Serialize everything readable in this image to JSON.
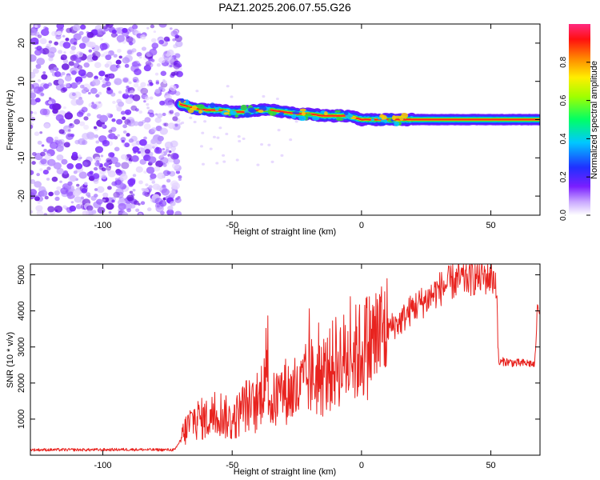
{
  "title": "PAZ1.2025.206.07.55.G26",
  "colors": {
    "snr_line": "#e8231f",
    "band": "#33cc33",
    "band_core": "#ff2222",
    "speckle": "#7b2cff"
  },
  "chart_data": [
    {
      "type": "heatmap",
      "xlabel": "Height of straight line (km)",
      "ylabel": "Frequency (Hz)",
      "xlim": [
        -128,
        69
      ],
      "ylim": [
        -25,
        25
      ],
      "xticks": [
        -100,
        -50,
        0,
        50
      ],
      "xtick_labels": [
        "-100",
        "-50",
        "0",
        "50"
      ],
      "yticks": [
        -20,
        -10,
        0,
        10,
        20
      ],
      "ytick_labels": [
        "-20",
        "-10",
        "0",
        "10",
        "20"
      ],
      "grid": false,
      "colorbar": {
        "label": "Normalized spectral amplitude",
        "range": [
          0,
          1
        ],
        "ticks": [
          0.0,
          0.2,
          0.4,
          0.6,
          0.8
        ],
        "tick_labels": [
          "0.0",
          "0.2",
          "0.4",
          "0.6",
          "0.8"
        ],
        "colormap": "rainbow"
      },
      "noise_region_x": [
        -128,
        -70
      ],
      "ridge": {
        "x": [
          -70,
          -65,
          -60,
          -55,
          -50,
          -45,
          -40,
          -35,
          -30,
          -25,
          -20,
          -15,
          -10,
          -5,
          0,
          5,
          10,
          15,
          20,
          30,
          40,
          50,
          60,
          69
        ],
        "y": [
          4,
          3,
          2.5,
          2.5,
          2,
          2,
          2.5,
          2.5,
          2,
          1.5,
          1.5,
          1,
          1,
          1,
          0,
          0,
          0,
          0,
          0,
          0,
          0,
          0,
          0,
          0
        ]
      }
    },
    {
      "type": "line",
      "xlabel": "Height of straight line (km)",
      "ylabel": "SNR (10 * v/v)",
      "xlim": [
        -128,
        69
      ],
      "ylim": [
        0,
        5300
      ],
      "xticks": [
        -100,
        -50,
        0,
        50
      ],
      "xtick_labels": [
        "-100",
        "-50",
        "0",
        "50"
      ],
      "yticks": [
        1000,
        2000,
        3000,
        4000,
        5000
      ],
      "ytick_labels": [
        "1000",
        "2000",
        "3000",
        "4000",
        "5000"
      ],
      "grid": false,
      "series": [
        {
          "x": [
            -128,
            -120,
            -110,
            -100,
            -90,
            -80,
            -72,
            -68,
            -65,
            -60,
            -55,
            -50,
            -45,
            -40,
            -37,
            -35,
            -30,
            -25,
            -20,
            -15,
            -10,
            -5,
            0,
            5,
            10,
            15,
            20,
            25,
            30,
            35,
            40,
            45,
            50,
            52,
            53,
            55,
            60,
            65,
            67,
            68,
            69
          ],
          "y": [
            150,
            150,
            150,
            150,
            160,
            150,
            150,
            700,
            1000,
            1000,
            1200,
            900,
            1400,
            1300,
            2500,
            1400,
            1800,
            1700,
            2200,
            2100,
            2600,
            2700,
            2900,
            3200,
            3500,
            3700,
            4100,
            4300,
            4600,
            4800,
            4900,
            4950,
            4950,
            4850,
            2550,
            2600,
            2550,
            2550,
            2500,
            4100,
            4000
          ]
        }
      ]
    }
  ]
}
